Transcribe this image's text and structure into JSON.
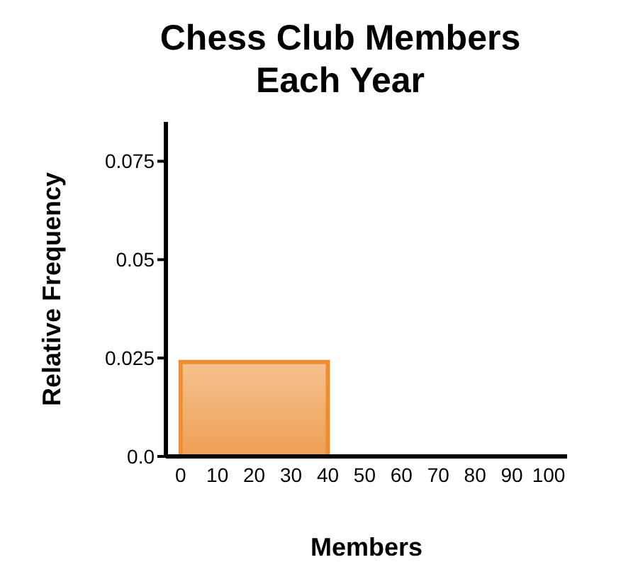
{
  "chart_data": {
    "type": "histogram",
    "title": "Chess Club Members\nEach Year",
    "xlabel": "Members",
    "ylabel": "Relative Frequency",
    "bins": [
      0,
      40
    ],
    "values": [
      0.024
    ],
    "color": "#ec8f34",
    "xlim": [
      -4,
      105
    ],
    "xticks": [
      0,
      10,
      20,
      30,
      40,
      50,
      60,
      70,
      80,
      90,
      100
    ],
    "ylim": [
      0,
      0.085
    ],
    "yticks": [
      {
        "value": 0,
        "label": "0.0"
      },
      0.025,
      0.05,
      0.075
    ],
    "grid": false
  }
}
